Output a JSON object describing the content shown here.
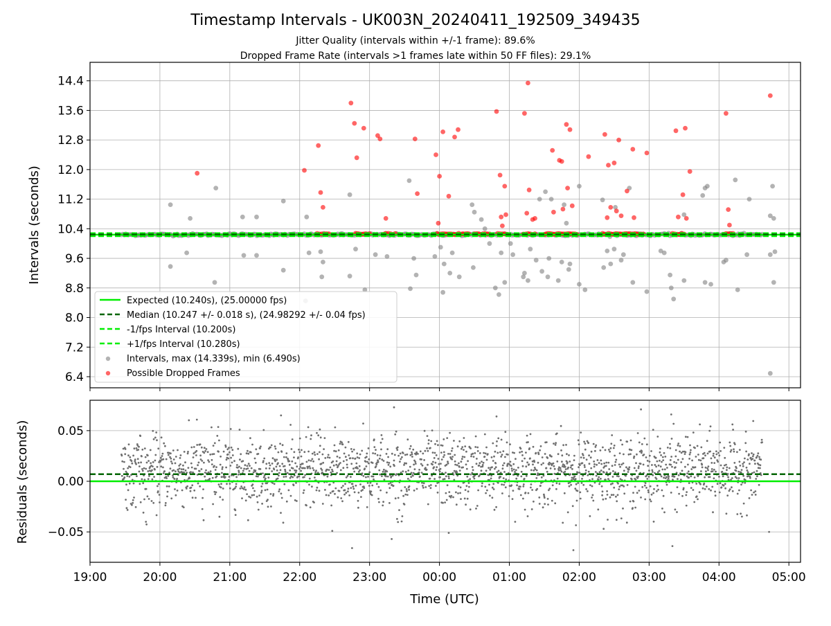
{
  "figure": {
    "title": "Timestamp Intervals - UK003N_20240411_192509_349435",
    "subtitle_1": "Jitter Quality (intervals within +/-1 frame): 89.6%",
    "subtitle_2": "Dropped Frame Rate (intervals >1 frames late within 50 FF files): 29.1%"
  },
  "colors": {
    "expected": "#00ee00",
    "median": "#006400",
    "band": "#00ee00",
    "intervals": "#808080",
    "dropped": "#ff0000",
    "residuals": "#6e6e6e"
  },
  "chart_data": [
    {
      "type": "scatter",
      "xlabel": "",
      "ylabel": "Intervals (seconds)",
      "x_range": [
        "19:00",
        "05:10"
      ],
      "ylim": [
        6.1,
        14.9
      ],
      "y_ticks": [
        "14.4",
        "13.6",
        "12.8",
        "12.0",
        "11.2",
        "10.4",
        "9.6",
        "8.8",
        "8.0",
        "7.2",
        "6.4"
      ],
      "grid": true,
      "legend_position": "lower-left",
      "reference_lines": {
        "expected": 10.24,
        "median": 10.247,
        "minus_1fps": 10.2,
        "plus_1fps": 10.28
      },
      "legend": [
        {
          "label": "Expected (10.240s), (25.00000 fps)",
          "style": "solid",
          "color_key": "expected"
        },
        {
          "label": "Median (10.247 +/- 0.018 s), (24.98292 +/- 0.04 fps)",
          "style": "dashed",
          "color_key": "median"
        },
        {
          "label": "-1/fps Interval (10.200s)",
          "style": "dashed",
          "color_key": "band"
        },
        {
          "label": "+1/fps Interval (10.280s)",
          "style": "dashed",
          "color_key": "band"
        },
        {
          "label": "Intervals, max (14.339s), min (6.490s)",
          "style": "dot",
          "color_key": "intervals"
        },
        {
          "label": "Possible Dropped Frames",
          "style": "dot",
          "color_key": "dropped"
        }
      ],
      "series": [
        {
          "name": "Intervals, max (14.339s), min (6.490s)",
          "points": [
            [
              "20:09",
              11.05
            ],
            [
              "20:09",
              9.38
            ],
            [
              "20:23",
              9.75
            ],
            [
              "20:26",
              10.68
            ],
            [
              "20:33",
              8.55
            ],
            [
              "20:47",
              8.95
            ],
            [
              "20:48",
              11.5
            ],
            [
              "21:11",
              10.72
            ],
            [
              "21:12",
              9.68
            ],
            [
              "21:23",
              10.72
            ],
            [
              "21:23",
              9.68
            ],
            [
              "21:46",
              11.15
            ],
            [
              "21:46",
              9.28
            ],
            [
              "22:05",
              8.45
            ],
            [
              "22:06",
              10.72
            ],
            [
              "22:08",
              9.75
            ],
            [
              "22:18",
              9.78
            ],
            [
              "22:19",
              9.1
            ],
            [
              "22:20",
              9.5
            ],
            [
              "22:43",
              11.32
            ],
            [
              "22:43",
              9.12
            ],
            [
              "22:48",
              9.85
            ],
            [
              "22:56",
              8.75
            ],
            [
              "23:05",
              9.7
            ],
            [
              "23:15",
              9.65
            ],
            [
              "23:34",
              11.7
            ],
            [
              "23:35",
              8.78
            ],
            [
              "23:38",
              9.6
            ],
            [
              "23:40",
              9.15
            ],
            [
              "23:56",
              9.65
            ],
            [
              "00:01",
              9.9
            ],
            [
              "00:03",
              8.68
            ],
            [
              "00:04",
              9.45
            ],
            [
              "00:09",
              9.2
            ],
            [
              "00:11",
              9.75
            ],
            [
              "00:17",
              9.1
            ],
            [
              "00:28",
              11.05
            ],
            [
              "00:29",
              9.35
            ],
            [
              "00:30",
              10.85
            ],
            [
              "00:36",
              10.65
            ],
            [
              "00:39",
              10.4
            ],
            [
              "00:43",
              10.0
            ],
            [
              "00:48",
              8.8
            ],
            [
              "00:51",
              8.62
            ],
            [
              "00:53",
              9.75
            ],
            [
              "00:56",
              8.95
            ],
            [
              "01:01",
              10.0
            ],
            [
              "01:03",
              9.7
            ],
            [
              "01:12",
              9.1
            ],
            [
              "01:13",
              9.2
            ],
            [
              "01:16",
              9.0
            ],
            [
              "01:18",
              9.85
            ],
            [
              "01:23",
              9.55
            ],
            [
              "01:26",
              11.2
            ],
            [
              "01:28",
              9.25
            ],
            [
              "01:31",
              11.4
            ],
            [
              "01:33",
              9.1
            ],
            [
              "01:34",
              9.6
            ],
            [
              "01:42",
              9.0
            ],
            [
              "01:45",
              9.5
            ],
            [
              "01:47",
              11.05
            ],
            [
              "01:49",
              10.55
            ],
            [
              "01:51",
              9.3
            ],
            [
              "01:52",
              9.45
            ],
            [
              "02:00",
              11.55
            ],
            [
              "02:00",
              8.9
            ],
            [
              "02:05",
              8.75
            ],
            [
              "02:20",
              11.18
            ],
            [
              "02:21",
              9.35
            ],
            [
              "02:24",
              9.8
            ],
            [
              "02:27",
              9.45
            ],
            [
              "02:30",
              9.85
            ],
            [
              "02:31",
              10.98
            ],
            [
              "02:36",
              9.55
            ],
            [
              "02:38",
              9.7
            ],
            [
              "02:46",
              8.95
            ],
            [
              "02:58",
              8.7
            ],
            [
              "03:10",
              9.8
            ],
            [
              "03:13",
              9.75
            ],
            [
              "03:18",
              9.15
            ],
            [
              "03:19",
              8.8
            ],
            [
              "03:21",
              8.5
            ],
            [
              "03:30",
              10.78
            ],
            [
              "03:30",
              9.0
            ],
            [
              "03:48",
              11.5
            ],
            [
              "03:48",
              8.95
            ],
            [
              "03:50",
              11.55
            ],
            [
              "03:53",
              8.9
            ],
            [
              "04:04",
              9.5
            ],
            [
              "04:06",
              9.55
            ],
            [
              "04:16",
              8.75
            ],
            [
              "04:24",
              9.7
            ],
            [
              "04:26",
              11.2
            ],
            [
              "04:44",
              10.75
            ],
            [
              "04:47",
              10.68
            ],
            [
              "04:46",
              11.55
            ],
            [
              "04:47",
              8.95
            ],
            [
              "04:48",
              9.78
            ],
            [
              "04:44",
              6.49
            ],
            [
              "03:46",
              11.3
            ],
            [
              "04:14",
              11.72
            ],
            [
              "02:43",
              11.5
            ],
            [
              "01:36",
              11.2
            ],
            [
              "04:44",
              9.7
            ]
          ]
        },
        {
          "name": "Possible Dropped Frames",
          "points": [
            [
              "20:32",
              11.9
            ],
            [
              "22:04",
              11.98
            ],
            [
              "22:16",
              12.65
            ],
            [
              "22:18",
              11.38
            ],
            [
              "22:20",
              10.98
            ],
            [
              "22:44",
              13.8
            ],
            [
              "22:47",
              13.25
            ],
            [
              "22:49",
              12.32
            ],
            [
              "22:55",
              13.12
            ],
            [
              "23:07",
              12.92
            ],
            [
              "23:09",
              12.83
            ],
            [
              "23:14",
              10.68
            ],
            [
              "23:39",
              12.83
            ],
            [
              "23:41",
              11.35
            ],
            [
              "23:57",
              12.4
            ],
            [
              "23:59",
              10.55
            ],
            [
              "00:00",
              11.82
            ],
            [
              "00:03",
              13.02
            ],
            [
              "00:08",
              11.28
            ],
            [
              "00:13",
              12.88
            ],
            [
              "00:16",
              13.08
            ],
            [
              "00:49",
              13.57
            ],
            [
              "00:52",
              11.85
            ],
            [
              "00:53",
              10.72
            ],
            [
              "00:54",
              10.48
            ],
            [
              "00:56",
              11.55
            ],
            [
              "00:57",
              10.78
            ],
            [
              "01:13",
              13.52
            ],
            [
              "01:15",
              10.82
            ],
            [
              "01:16",
              14.34
            ],
            [
              "01:17",
              11.45
            ],
            [
              "01:20",
              10.65
            ],
            [
              "01:22",
              10.68
            ],
            [
              "01:37",
              12.52
            ],
            [
              "01:38",
              10.85
            ],
            [
              "01:43",
              12.25
            ],
            [
              "01:45",
              12.22
            ],
            [
              "01:46",
              10.93
            ],
            [
              "01:49",
              13.22
            ],
            [
              "01:50",
              11.5
            ],
            [
              "01:52",
              13.08
            ],
            [
              "01:54",
              11.02
            ],
            [
              "02:08",
              12.35
            ],
            [
              "02:22",
              12.95
            ],
            [
              "02:24",
              10.7
            ],
            [
              "02:25",
              12.12
            ],
            [
              "02:27",
              10.98
            ],
            [
              "02:30",
              12.18
            ],
            [
              "02:32",
              10.88
            ],
            [
              "02:34",
              12.8
            ],
            [
              "02:36",
              10.75
            ],
            [
              "02:41",
              11.42
            ],
            [
              "02:46",
              12.55
            ],
            [
              "02:47",
              10.7
            ],
            [
              "02:58",
              12.45
            ],
            [
              "03:23",
              13.05
            ],
            [
              "03:25",
              10.72
            ],
            [
              "03:29",
              11.32
            ],
            [
              "03:31",
              13.12
            ],
            [
              "03:32",
              10.68
            ],
            [
              "03:35",
              11.95
            ],
            [
              "04:06",
              13.52
            ],
            [
              "04:08",
              10.92
            ],
            [
              "04:09",
              10.5
            ],
            [
              "04:44",
              14.0
            ]
          ],
          "cluster_value": 10.26
        }
      ]
    },
    {
      "type": "scatter",
      "xlabel": "Time (UTC)",
      "ylabel": "Residuals (seconds)",
      "x_range": [
        "19:00",
        "05:10"
      ],
      "x_ticks": [
        "19:00",
        "20:00",
        "21:00",
        "22:00",
        "23:00",
        "00:00",
        "01:00",
        "02:00",
        "03:00",
        "04:00",
        "05:00"
      ],
      "ylim": [
        -0.08,
        0.08
      ],
      "y_ticks": [
        "0.05",
        "0.00",
        "−0.05"
      ],
      "grid": true,
      "reference_lines": {
        "expected": 0.0,
        "median": 0.007
      },
      "series": [
        {
          "name": "",
          "data_range": [
            "19:27",
            "04:37"
          ],
          "center": 0.01,
          "spread": 0.017,
          "notable_points": [
            [
              "21:44",
              0.065
            ],
            [
              "23:21",
              0.073
            ],
            [
              "02:53",
              0.071
            ],
            [
              "03:19",
              0.066
            ],
            [
              "00:49",
              0.064
            ],
            [
              "02:21",
              -0.047
            ],
            [
              "22:28",
              -0.049
            ],
            [
              "23:19",
              -0.057
            ],
            [
              "22:45",
              -0.066
            ],
            [
              "01:55",
              -0.068
            ],
            [
              "03:20",
              -0.064
            ],
            [
              "04:43",
              -0.05
            ],
            [
              "00:08",
              -0.051
            ],
            [
              "01:05",
              -0.04
            ],
            [
              "19:48",
              -0.04
            ]
          ]
        }
      ]
    }
  ]
}
